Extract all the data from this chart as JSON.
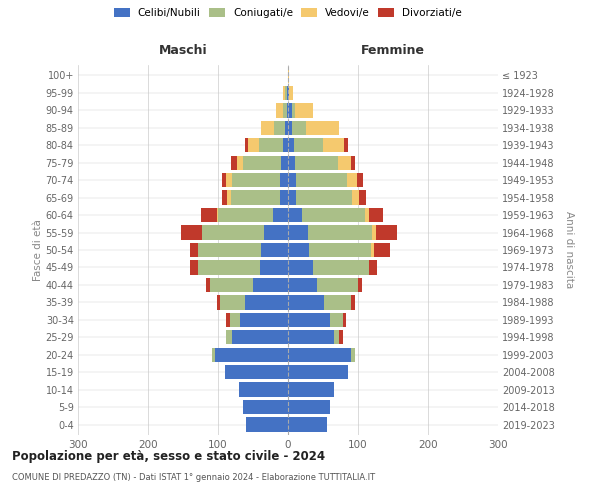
{
  "age_groups": [
    "0-4",
    "5-9",
    "10-14",
    "15-19",
    "20-24",
    "25-29",
    "30-34",
    "35-39",
    "40-44",
    "45-49",
    "50-54",
    "55-59",
    "60-64",
    "65-69",
    "70-74",
    "75-79",
    "80-84",
    "85-89",
    "90-94",
    "95-99",
    "100+"
  ],
  "birth_years": [
    "2019-2023",
    "2014-2018",
    "2009-2013",
    "2004-2008",
    "1999-2003",
    "1994-1998",
    "1989-1993",
    "1984-1988",
    "1979-1983",
    "1974-1978",
    "1969-1973",
    "1964-1968",
    "1959-1963",
    "1954-1958",
    "1949-1953",
    "1944-1948",
    "1939-1943",
    "1934-1938",
    "1929-1933",
    "1924-1928",
    "≤ 1923"
  ],
  "colors": {
    "celibi": "#4472C4",
    "coniugati": "#AABF88",
    "vedovi": "#F5C96E",
    "divorziati": "#C0392B"
  },
  "maschi": {
    "celibi": [
      60,
      65,
      70,
      90,
      105,
      80,
      68,
      62,
      50,
      40,
      38,
      35,
      22,
      12,
      12,
      10,
      7,
      5,
      2,
      2,
      0
    ],
    "coniugati": [
      0,
      0,
      0,
      0,
      3,
      8,
      15,
      35,
      62,
      88,
      90,
      88,
      78,
      70,
      68,
      55,
      35,
      15,
      5,
      2,
      0
    ],
    "vedovi": [
      0,
      0,
      0,
      0,
      0,
      0,
      0,
      0,
      0,
      0,
      0,
      0,
      2,
      5,
      8,
      8,
      15,
      18,
      10,
      3,
      0
    ],
    "divorziati": [
      0,
      0,
      0,
      0,
      0,
      0,
      5,
      5,
      5,
      12,
      12,
      30,
      22,
      8,
      6,
      8,
      5,
      0,
      0,
      0,
      0
    ]
  },
  "femmine": {
    "celibi": [
      55,
      60,
      65,
      85,
      90,
      65,
      60,
      52,
      42,
      35,
      30,
      28,
      20,
      12,
      12,
      10,
      8,
      5,
      5,
      2,
      0
    ],
    "coniugati": [
      0,
      0,
      0,
      0,
      5,
      8,
      18,
      38,
      58,
      80,
      88,
      92,
      90,
      80,
      72,
      62,
      42,
      20,
      5,
      0,
      0
    ],
    "vedovi": [
      0,
      0,
      0,
      0,
      0,
      0,
      0,
      0,
      0,
      0,
      5,
      5,
      5,
      10,
      15,
      18,
      30,
      48,
      25,
      5,
      2
    ],
    "divorziati": [
      0,
      0,
      0,
      0,
      0,
      5,
      5,
      5,
      5,
      12,
      22,
      30,
      20,
      10,
      8,
      5,
      5,
      0,
      0,
      0,
      0
    ]
  },
  "title": "Popolazione per età, sesso e stato civile - 2024",
  "subtitle": "COMUNE DI PREDAZZO (TN) - Dati ISTAT 1° gennaio 2024 - Elaborazione TUTTITALIA.IT",
  "ylabel_left": "Fasce di età",
  "ylabel_right": "Anni di nascita",
  "xlabel_left": "Maschi",
  "xlabel_right": "Femmine",
  "xlim": 300,
  "legend_labels": [
    "Celibi/Nubili",
    "Coniugati/e",
    "Vedovi/e",
    "Divorziati/e"
  ],
  "bg_color": "#FFFFFF",
  "grid_color": "#CCCCCC"
}
